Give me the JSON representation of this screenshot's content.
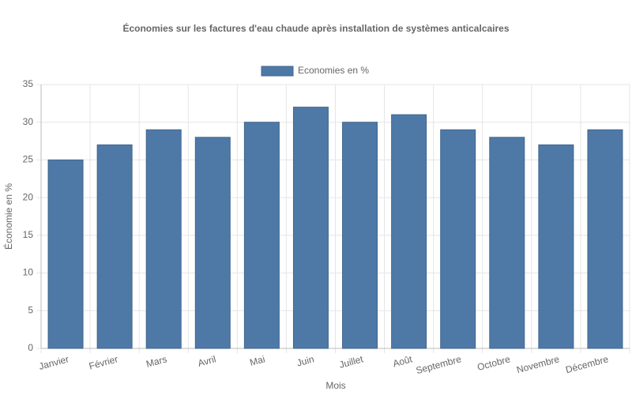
{
  "chart_data": {
    "type": "bar",
    "title": "Économies sur les factures d'eau chaude après installation de systèmes anticalcaires",
    "categories": [
      "Janvier",
      "Février",
      "Mars",
      "Avril",
      "Mai",
      "Juin",
      "Juillet",
      "Août",
      "Septembre",
      "Octobre",
      "Novembre",
      "Décembre"
    ],
    "series": [
      {
        "name": "Economies en %",
        "color": "#4e79a7",
        "values": [
          25,
          27,
          29,
          28,
          30,
          32,
          30,
          31,
          29,
          28,
          27,
          29
        ]
      }
    ],
    "x_label": "Mois",
    "y_label": "Économie en %",
    "ylim": [
      0,
      35
    ],
    "yticks": [
      0,
      5,
      10,
      15,
      20,
      25,
      30,
      35
    ],
    "grid": true,
    "legend": "top"
  }
}
